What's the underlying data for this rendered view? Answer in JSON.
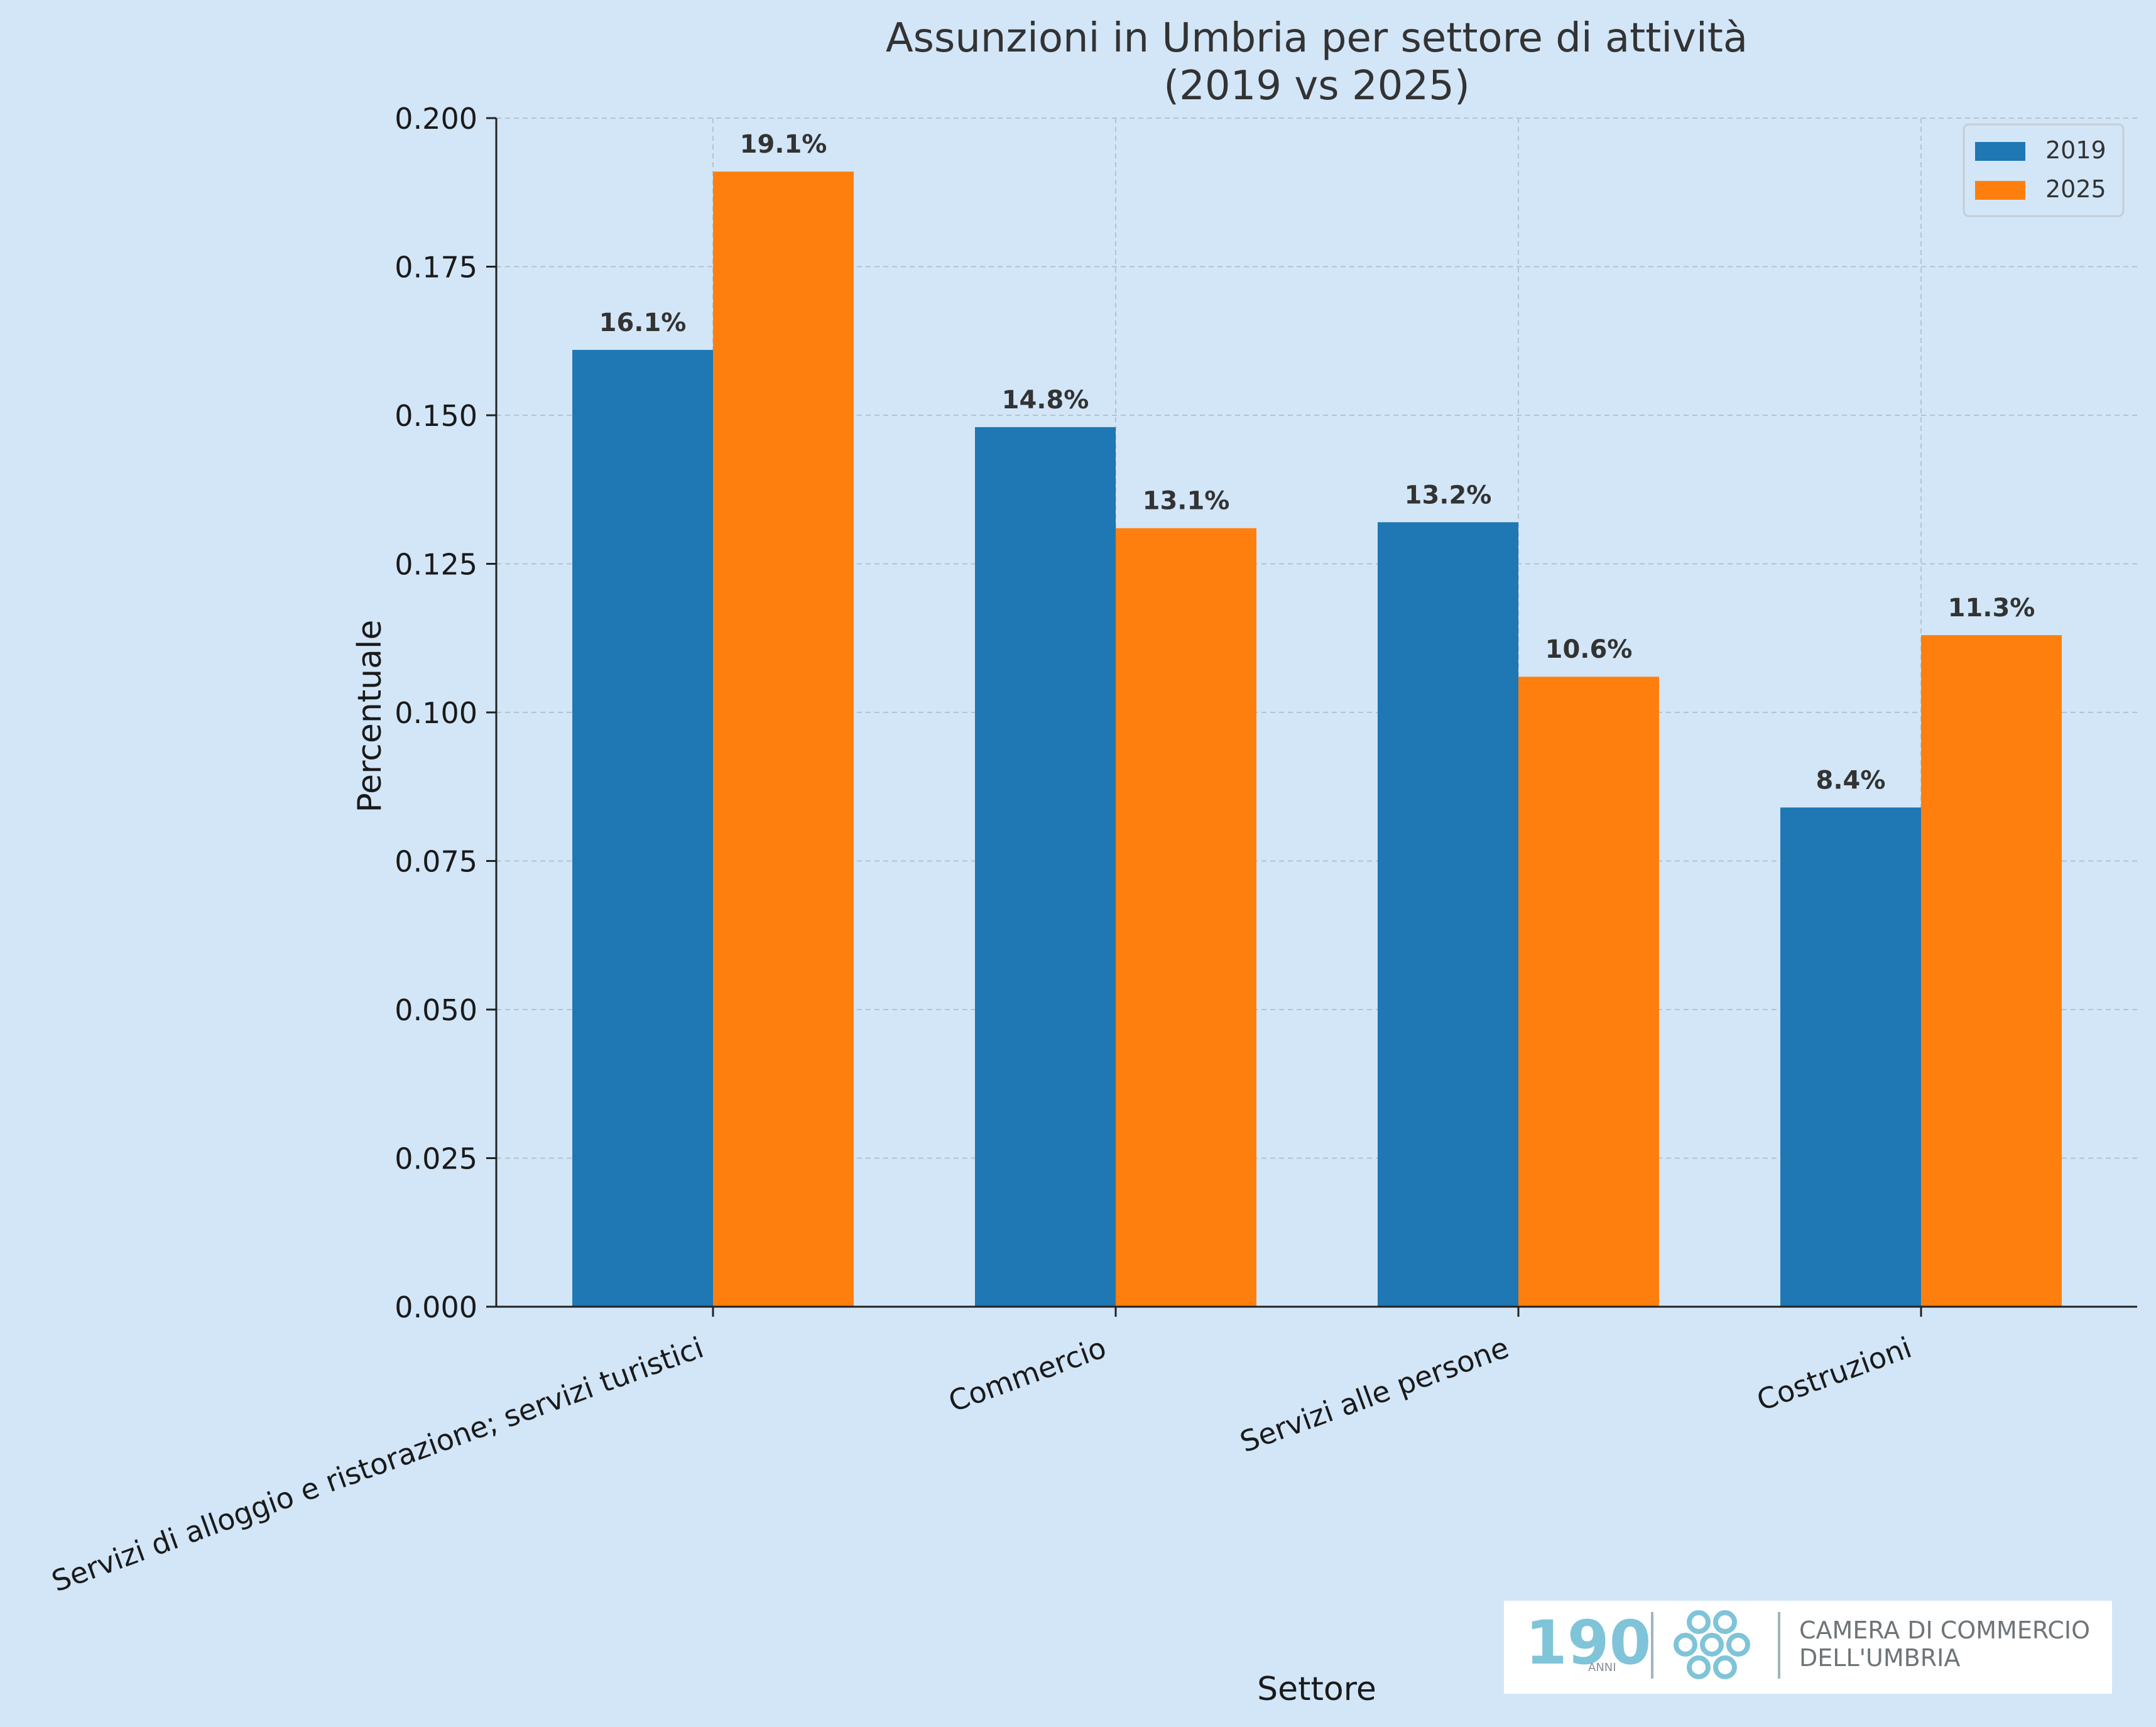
{
  "chart_data": {
    "type": "bar",
    "title": "Assunzioni in Umbria per settore di attività",
    "subtitle": "(2019 vs 2025)",
    "xlabel": "Settore",
    "ylabel": "Percentuale",
    "categories": [
      "Servizi di alloggio e ristorazione; servizi turistici",
      "Commercio",
      "Servizi alle persone",
      "Costruzioni"
    ],
    "series": [
      {
        "name": "2019",
        "color": "#1f77b4",
        "values": [
          0.161,
          0.148,
          0.132,
          0.084
        ],
        "labels": [
          "16.1%",
          "14.8%",
          "13.2%",
          "8.4%"
        ]
      },
      {
        "name": "2025",
        "color": "#ff7f0e",
        "values": [
          0.191,
          0.131,
          0.106,
          0.113
        ],
        "labels": [
          "19.1%",
          "13.1%",
          "10.6%",
          "11.3%"
        ]
      }
    ],
    "ylim": [
      0,
      0.2
    ],
    "yticks": [
      "0.000",
      "0.025",
      "0.050",
      "0.075",
      "0.100",
      "0.125",
      "0.150",
      "0.175",
      "0.200"
    ],
    "grid": true,
    "legend_position": "top-right",
    "background": "#d2e6f8"
  },
  "logo": {
    "anniversary_text": "190",
    "anniversary_sub": "ANNI",
    "org_line1": "CAMERA DI COMMERCIO",
    "org_line2": "DELL'UMBRIA",
    "accent_color": "#7fc4d8"
  }
}
